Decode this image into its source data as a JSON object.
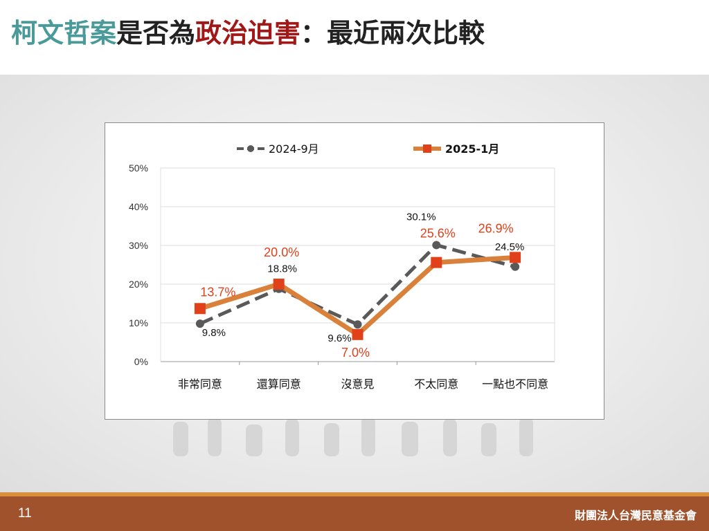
{
  "title": {
    "part1": "柯文哲案",
    "part2": "是否為",
    "part3": "政治迫害",
    "part4": "：最近兩次比較",
    "colors": {
      "part1": "#4a9a9a",
      "part2": "#222222",
      "part3": "#a01818",
      "part4": "#222222"
    }
  },
  "footer": {
    "page_number": "11",
    "organization": "財團法人台灣民意基金會"
  },
  "chart_data": {
    "type": "line",
    "categories": [
      "非常同意",
      "還算同意",
      "沒意見",
      "不太同意",
      "一點也不同意"
    ],
    "ylim": [
      0,
      50
    ],
    "yticks": [
      "0%",
      "10%",
      "20%",
      "30%",
      "40%",
      "50%"
    ],
    "grid": true,
    "legend": "top",
    "series": [
      {
        "name": "2024-9月",
        "values": [
          9.8,
          18.8,
          9.6,
          30.1,
          24.5
        ],
        "labels": [
          "9.8%",
          "18.8%",
          "9.6%",
          "30.1%",
          "24.5%"
        ],
        "color": "#595959",
        "style": "dashed"
      },
      {
        "name": "2025-1月",
        "values": [
          13.7,
          20.0,
          7.0,
          25.6,
          26.9
        ],
        "labels": [
          "13.7%",
          "20.0%",
          "7.0%",
          "25.6%",
          "26.9%"
        ],
        "color": "#d9813a",
        "marker_color": "#e0401a",
        "label_color": "#e0401a",
        "style": "solid"
      }
    ]
  }
}
